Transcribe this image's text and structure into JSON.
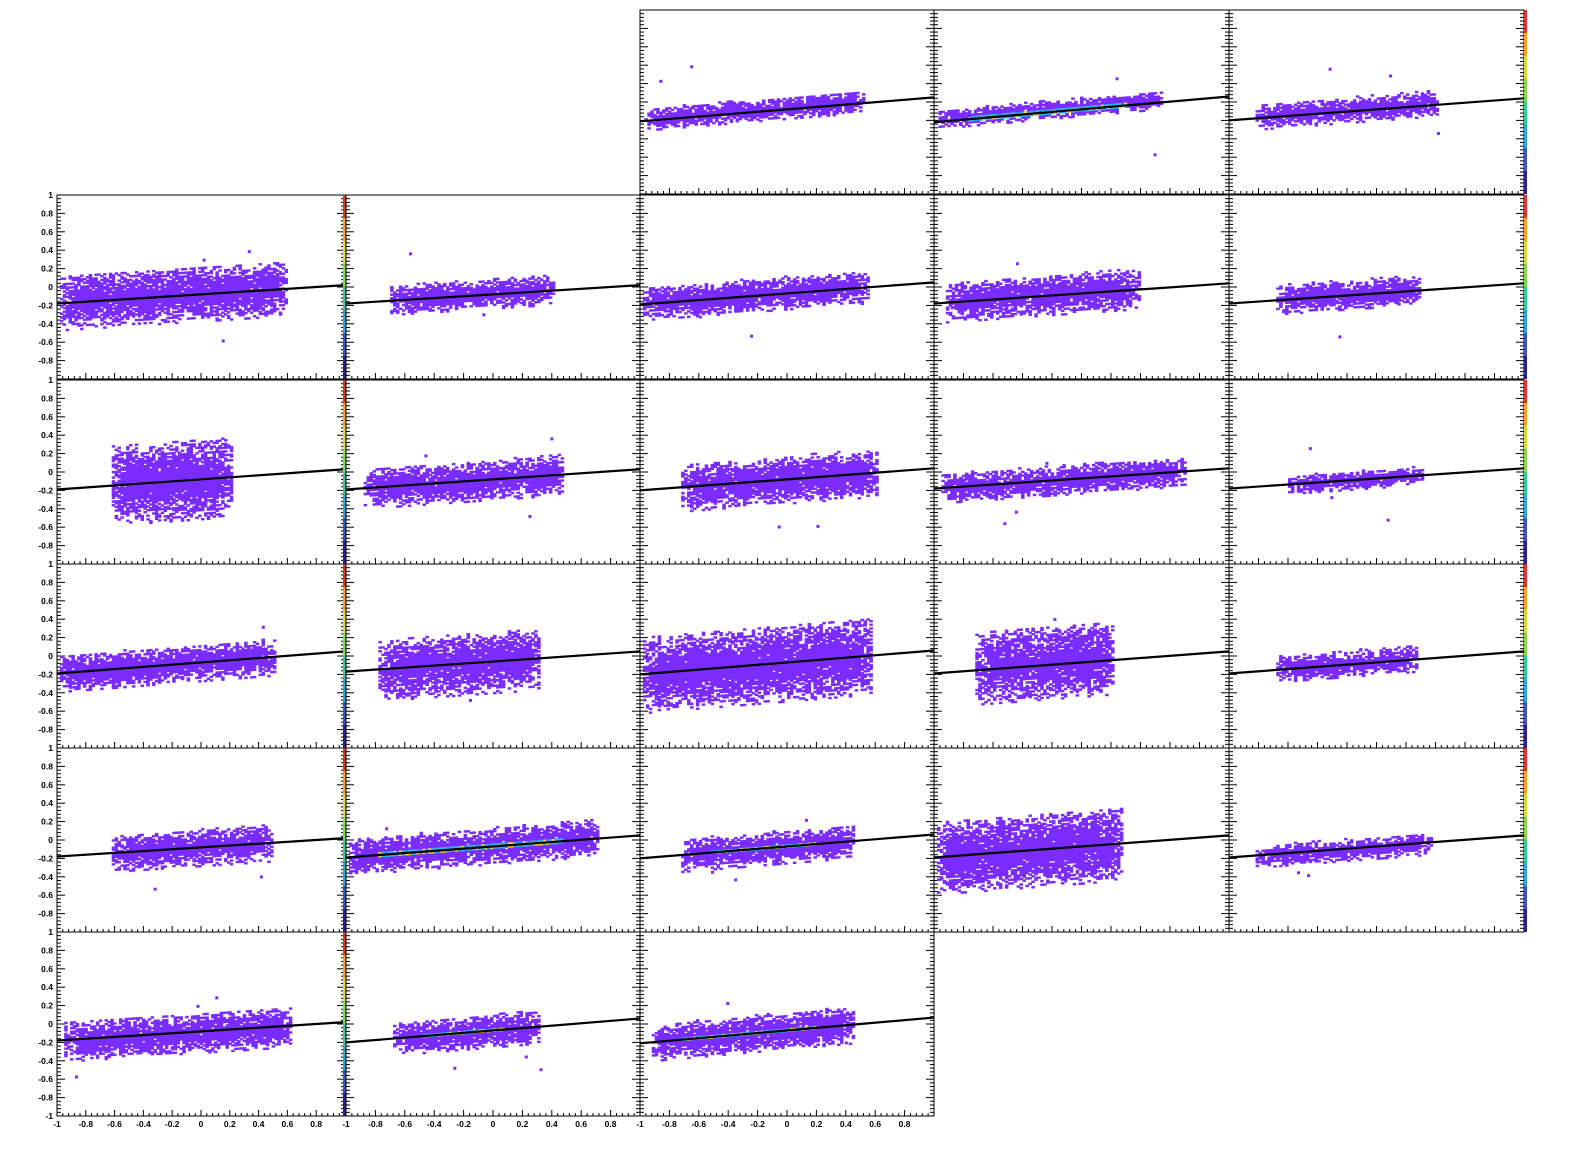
{
  "chart_data": {
    "type": "heatmap",
    "layout": "5 columns x 6 rows grid of 2D histograms with linear fit lines; 26 panels shown",
    "xlim": [
      -1,
      1
    ],
    "ylim": [
      -1,
      1
    ],
    "x_tick_labels": [
      "-1",
      "-0.8",
      "-0.6",
      "-0.4",
      "-0.2",
      "0",
      "0.2",
      "0.4",
      "0.6",
      "0.8"
    ],
    "y_tick_labels": [
      "1",
      "0.8",
      "0.6",
      "0.4",
      "0.2",
      "0",
      "-0.2",
      "-0.4",
      "-0.6",
      "-0.8",
      "-1"
    ],
    "colors": {
      "low": "#7b2cff",
      "mid": "#27b9e6",
      "high": "#ffd21a",
      "fit_line": "#000000",
      "palette": [
        "#2c1f8e",
        "#3a53c6",
        "#2aa6d8",
        "#36c89a",
        "#7fd650",
        "#d8d63a",
        "#f6a02a",
        "#d9372a"
      ]
    },
    "panels": [
      {
        "row": 0,
        "col": 2,
        "fit": {
          "intercept": -0.08,
          "slope": 0.13
        },
        "blob": {
          "x0": -0.97,
          "x1": 0.52,
          "yc": -0.07,
          "h": 0.12,
          "core": false
        }
      },
      {
        "row": 0,
        "col": 3,
        "fit": {
          "intercept": -0.08,
          "slope": 0.14
        },
        "blob": {
          "x0": -0.97,
          "x1": 0.55,
          "yc": -0.06,
          "h": 0.1,
          "core": true
        }
      },
      {
        "row": 0,
        "col": 4,
        "fit": {
          "intercept": -0.08,
          "slope": 0.12
        },
        "blob": {
          "x0": -0.82,
          "x1": 0.42,
          "yc": -0.07,
          "h": 0.14,
          "core": false
        }
      },
      {
        "row": 1,
        "col": 0,
        "fit": {
          "intercept": -0.08,
          "slope": 0.1
        },
        "blob": {
          "x0": -0.98,
          "x1": 0.6,
          "yc": -0.08,
          "h": 0.3,
          "core": false
        }
      },
      {
        "row": 1,
        "col": 1,
        "fit": {
          "intercept": -0.08,
          "slope": 0.1
        },
        "blob": {
          "x0": -0.7,
          "x1": 0.42,
          "yc": -0.08,
          "h": 0.16,
          "core": false
        }
      },
      {
        "row": 1,
        "col": 2,
        "fit": {
          "intercept": -0.07,
          "slope": 0.12
        },
        "blob": {
          "x0": -0.98,
          "x1": 0.55,
          "yc": -0.07,
          "h": 0.18,
          "core": false
        }
      },
      {
        "row": 1,
        "col": 3,
        "fit": {
          "intercept": -0.07,
          "slope": 0.11
        },
        "blob": {
          "x0": -0.92,
          "x1": 0.4,
          "yc": -0.07,
          "h": 0.22,
          "core": false
        }
      },
      {
        "row": 1,
        "col": 4,
        "fit": {
          "intercept": -0.07,
          "slope": 0.11
        },
        "blob": {
          "x0": -0.68,
          "x1": 0.3,
          "yc": -0.07,
          "h": 0.16,
          "core": false
        }
      },
      {
        "row": 2,
        "col": 0,
        "fit": {
          "intercept": -0.08,
          "slope": 0.11
        },
        "blob": {
          "x0": -0.62,
          "x1": 0.22,
          "yc": -0.08,
          "h": 0.44,
          "core": false
        }
      },
      {
        "row": 2,
        "col": 1,
        "fit": {
          "intercept": -0.08,
          "slope": 0.11
        },
        "blob": {
          "x0": -0.88,
          "x1": 0.48,
          "yc": -0.09,
          "h": 0.22,
          "core": false
        }
      },
      {
        "row": 2,
        "col": 2,
        "fit": {
          "intercept": -0.08,
          "slope": 0.12
        },
        "blob": {
          "x0": -0.72,
          "x1": 0.62,
          "yc": -0.09,
          "h": 0.26,
          "core": false
        }
      },
      {
        "row": 2,
        "col": 3,
        "fit": {
          "intercept": -0.07,
          "slope": 0.11
        },
        "blob": {
          "x0": -0.95,
          "x1": 0.7,
          "yc": -0.08,
          "h": 0.16,
          "core": false
        }
      },
      {
        "row": 2,
        "col": 4,
        "fit": {
          "intercept": -0.07,
          "slope": 0.11
        },
        "blob": {
          "x0": -0.6,
          "x1": 0.32,
          "yc": -0.08,
          "h": 0.1,
          "core": false
        }
      },
      {
        "row": 3,
        "col": 0,
        "fit": {
          "intercept": -0.07,
          "slope": 0.12
        },
        "blob": {
          "x0": -0.98,
          "x1": 0.52,
          "yc": -0.08,
          "h": 0.2,
          "core": false
        }
      },
      {
        "row": 3,
        "col": 1,
        "fit": {
          "intercept": -0.06,
          "slope": 0.11
        },
        "blob": {
          "x0": -0.78,
          "x1": 0.32,
          "yc": -0.07,
          "h": 0.34,
          "core": false
        }
      },
      {
        "row": 3,
        "col": 2,
        "fit": {
          "intercept": -0.07,
          "slope": 0.13
        },
        "blob": {
          "x0": -0.98,
          "x1": 0.58,
          "yc": -0.08,
          "h": 0.42,
          "core": false
        }
      },
      {
        "row": 3,
        "col": 3,
        "fit": {
          "intercept": -0.07,
          "slope": 0.12
        },
        "blob": {
          "x0": -0.72,
          "x1": 0.22,
          "yc": -0.05,
          "h": 0.4,
          "core": false
        }
      },
      {
        "row": 3,
        "col": 4,
        "fit": {
          "intercept": -0.07,
          "slope": 0.12
        },
        "blob": {
          "x0": -0.68,
          "x1": 0.28,
          "yc": -0.07,
          "h": 0.14,
          "core": false
        }
      },
      {
        "row": 4,
        "col": 0,
        "fit": {
          "intercept": -0.08,
          "slope": 0.1
        },
        "blob": {
          "x0": -0.62,
          "x1": 0.5,
          "yc": -0.09,
          "h": 0.2,
          "core": false
        }
      },
      {
        "row": 4,
        "col": 1,
        "fit": {
          "intercept": -0.07,
          "slope": 0.12
        },
        "blob": {
          "x0": -0.98,
          "x1": 0.72,
          "yc": -0.07,
          "h": 0.2,
          "core": true
        }
      },
      {
        "row": 4,
        "col": 2,
        "fit": {
          "intercept": -0.07,
          "slope": 0.13
        },
        "blob": {
          "x0": -0.72,
          "x1": 0.45,
          "yc": -0.08,
          "h": 0.18,
          "core": true
        }
      },
      {
        "row": 4,
        "col": 3,
        "fit": {
          "intercept": -0.07,
          "slope": 0.12
        },
        "blob": {
          "x0": -0.98,
          "x1": 0.28,
          "yc": -0.08,
          "h": 0.4,
          "core": false
        }
      },
      {
        "row": 4,
        "col": 4,
        "fit": {
          "intercept": -0.07,
          "slope": 0.12
        },
        "blob": {
          "x0": -0.82,
          "x1": 0.38,
          "yc": -0.09,
          "h": 0.12,
          "core": false
        }
      },
      {
        "row": 5,
        "col": 0,
        "fit": {
          "intercept": -0.08,
          "slope": 0.1
        },
        "blob": {
          "x0": -0.95,
          "x1": 0.62,
          "yc": -0.1,
          "h": 0.22,
          "core": false
        }
      },
      {
        "row": 5,
        "col": 1,
        "fit": {
          "intercept": -0.07,
          "slope": 0.13
        },
        "blob": {
          "x0": -0.68,
          "x1": 0.32,
          "yc": -0.08,
          "h": 0.18,
          "core": true
        }
      },
      {
        "row": 5,
        "col": 2,
        "fit": {
          "intercept": -0.07,
          "slope": 0.14
        },
        "blob": {
          "x0": -0.92,
          "x1": 0.45,
          "yc": -0.08,
          "h": 0.2,
          "core": true
        }
      }
    ]
  }
}
